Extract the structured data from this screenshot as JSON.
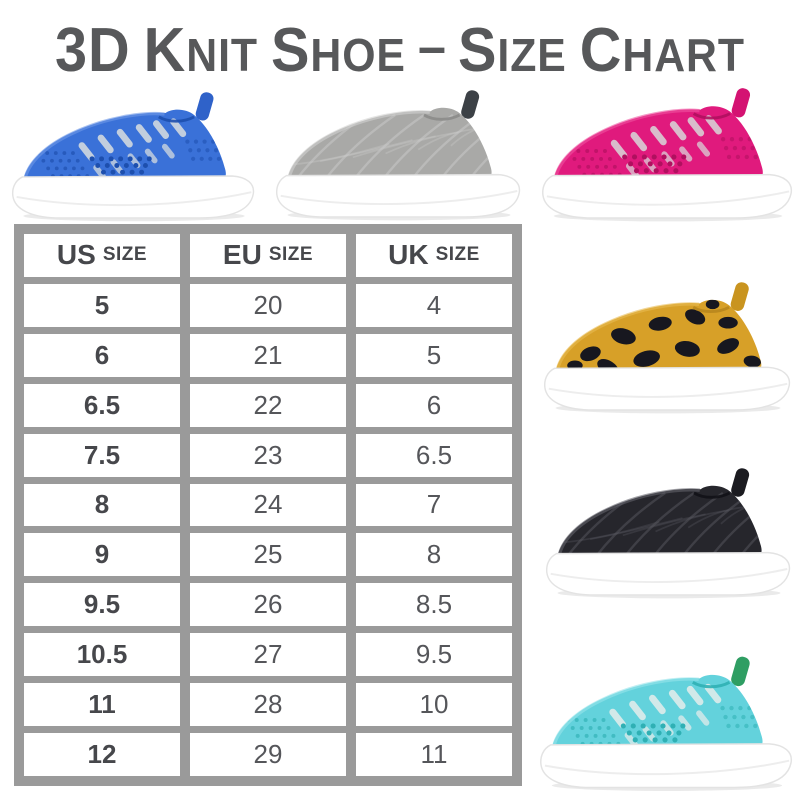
{
  "page": {
    "background": "#ffffff"
  },
  "title": {
    "text": "3D Knit Shoe – Size Chart",
    "color": "#57585a"
  },
  "size_table": {
    "frame_color": "#9a9a9a",
    "cell_color": "#ffffff",
    "text_color": "#55565a",
    "text_strong_color": "#46474b",
    "headers": [
      {
        "abbr": "US",
        "word": "size"
      },
      {
        "abbr": "EU",
        "word": "size"
      },
      {
        "abbr": "UK",
        "word": "size"
      }
    ],
    "rows": [
      [
        "5",
        "20",
        "4"
      ],
      [
        "6",
        "21",
        "5"
      ],
      [
        "6.5",
        "22",
        "6"
      ],
      [
        "7.5",
        "23",
        "6.5"
      ],
      [
        "8",
        "24",
        "7"
      ],
      [
        "9",
        "25",
        "8"
      ],
      [
        "9.5",
        "26",
        "8.5"
      ],
      [
        "10.5",
        "27",
        "9.5"
      ],
      [
        "11",
        "28",
        "10"
      ],
      [
        "12",
        "29",
        "11"
      ]
    ]
  },
  "sole": {
    "color": "#ffffff",
    "outline": "#e3e3e3",
    "tread": "#ededed",
    "shadow": "#e8e8e8"
  },
  "shoes": [
    {
      "name": "blue-knit-shoe",
      "pattern": "vents",
      "main": "#3a71d8",
      "dark": "#1d4fae",
      "light": "#6f9ae8",
      "tab": "#2f62c9",
      "vent": "#c2cede",
      "hole": "#1d4fae"
    },
    {
      "name": "gray-knit-shoe",
      "pattern": "knit",
      "main": "#a9a9a7",
      "dark": "#8b8b89",
      "light": "#d2d2d0",
      "tab": "#3c4146",
      "knit": "#cccccb"
    },
    {
      "name": "pink-knit-shoe",
      "pattern": "vents",
      "main": "#e01a7d",
      "dark": "#b0105f",
      "light": "#ee54a0",
      "tab": "#d41372",
      "vent": "#d9bccb",
      "hole": "#b0105f"
    },
    {
      "name": "leopard-knit-shoe",
      "pattern": "spots",
      "main": "#d7a028",
      "dark": "#b8861d",
      "light": "#e7bb52",
      "tab": "#c9941f",
      "spot": "#17171f"
    },
    {
      "name": "black-knit-shoe",
      "pattern": "knit",
      "main": "#26262c",
      "dark": "#121217",
      "light": "#62626a",
      "tab": "#1b1b20",
      "knit": "#585860"
    },
    {
      "name": "aqua-knit-shoe",
      "pattern": "vents",
      "main": "#63d2dc",
      "dark": "#2fb0b4",
      "light": "#97e5eb",
      "tab": "#2f9e63",
      "vent": "#d2e9e9",
      "hole": "#2fb0b4"
    }
  ]
}
